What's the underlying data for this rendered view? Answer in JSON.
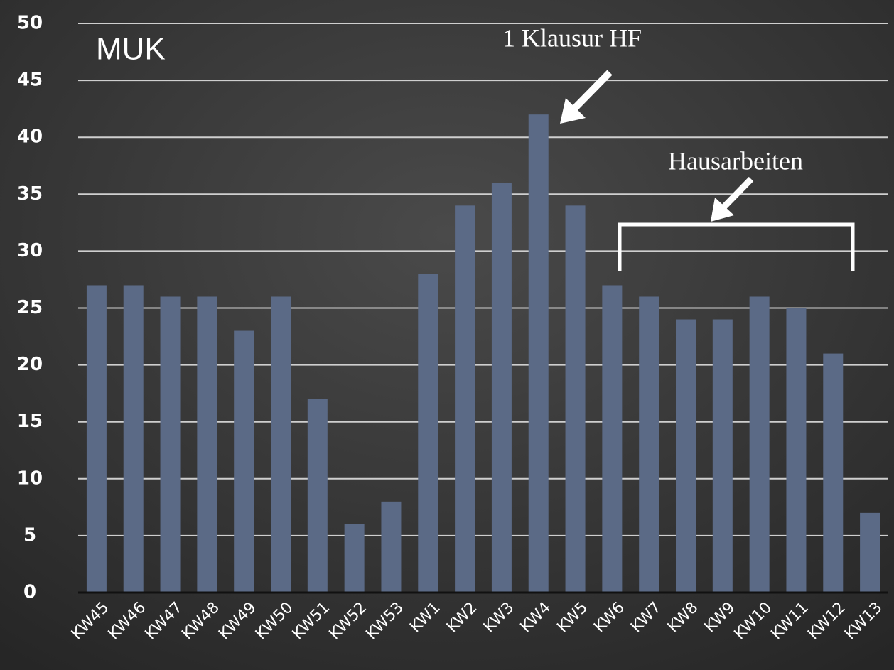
{
  "chart_data": {
    "type": "bar",
    "title": "MUK",
    "categories": [
      "KW45",
      "KW46",
      "KW47",
      "KW48",
      "KW49",
      "KW50",
      "KW51",
      "KW52",
      "KW53",
      "KW1",
      "KW2",
      "KW3",
      "KW4",
      "KW5",
      "KW6",
      "KW7",
      "KW8",
      "KW9",
      "KW10",
      "KW11",
      "KW12",
      "KW13"
    ],
    "values": [
      27,
      27,
      26,
      26,
      23,
      26,
      17,
      6,
      8,
      28,
      34,
      36,
      42,
      34,
      27,
      26,
      24,
      24,
      26,
      25,
      21,
      7
    ],
    "color": "#5b6a86",
    "ylim": [
      0,
      50
    ],
    "yticks": [
      0,
      5,
      10,
      15,
      20,
      25,
      30,
      35,
      40,
      45,
      50
    ],
    "grid": true,
    "annotations": [
      "1 Klausur HF",
      "Hausarbeiten"
    ]
  }
}
